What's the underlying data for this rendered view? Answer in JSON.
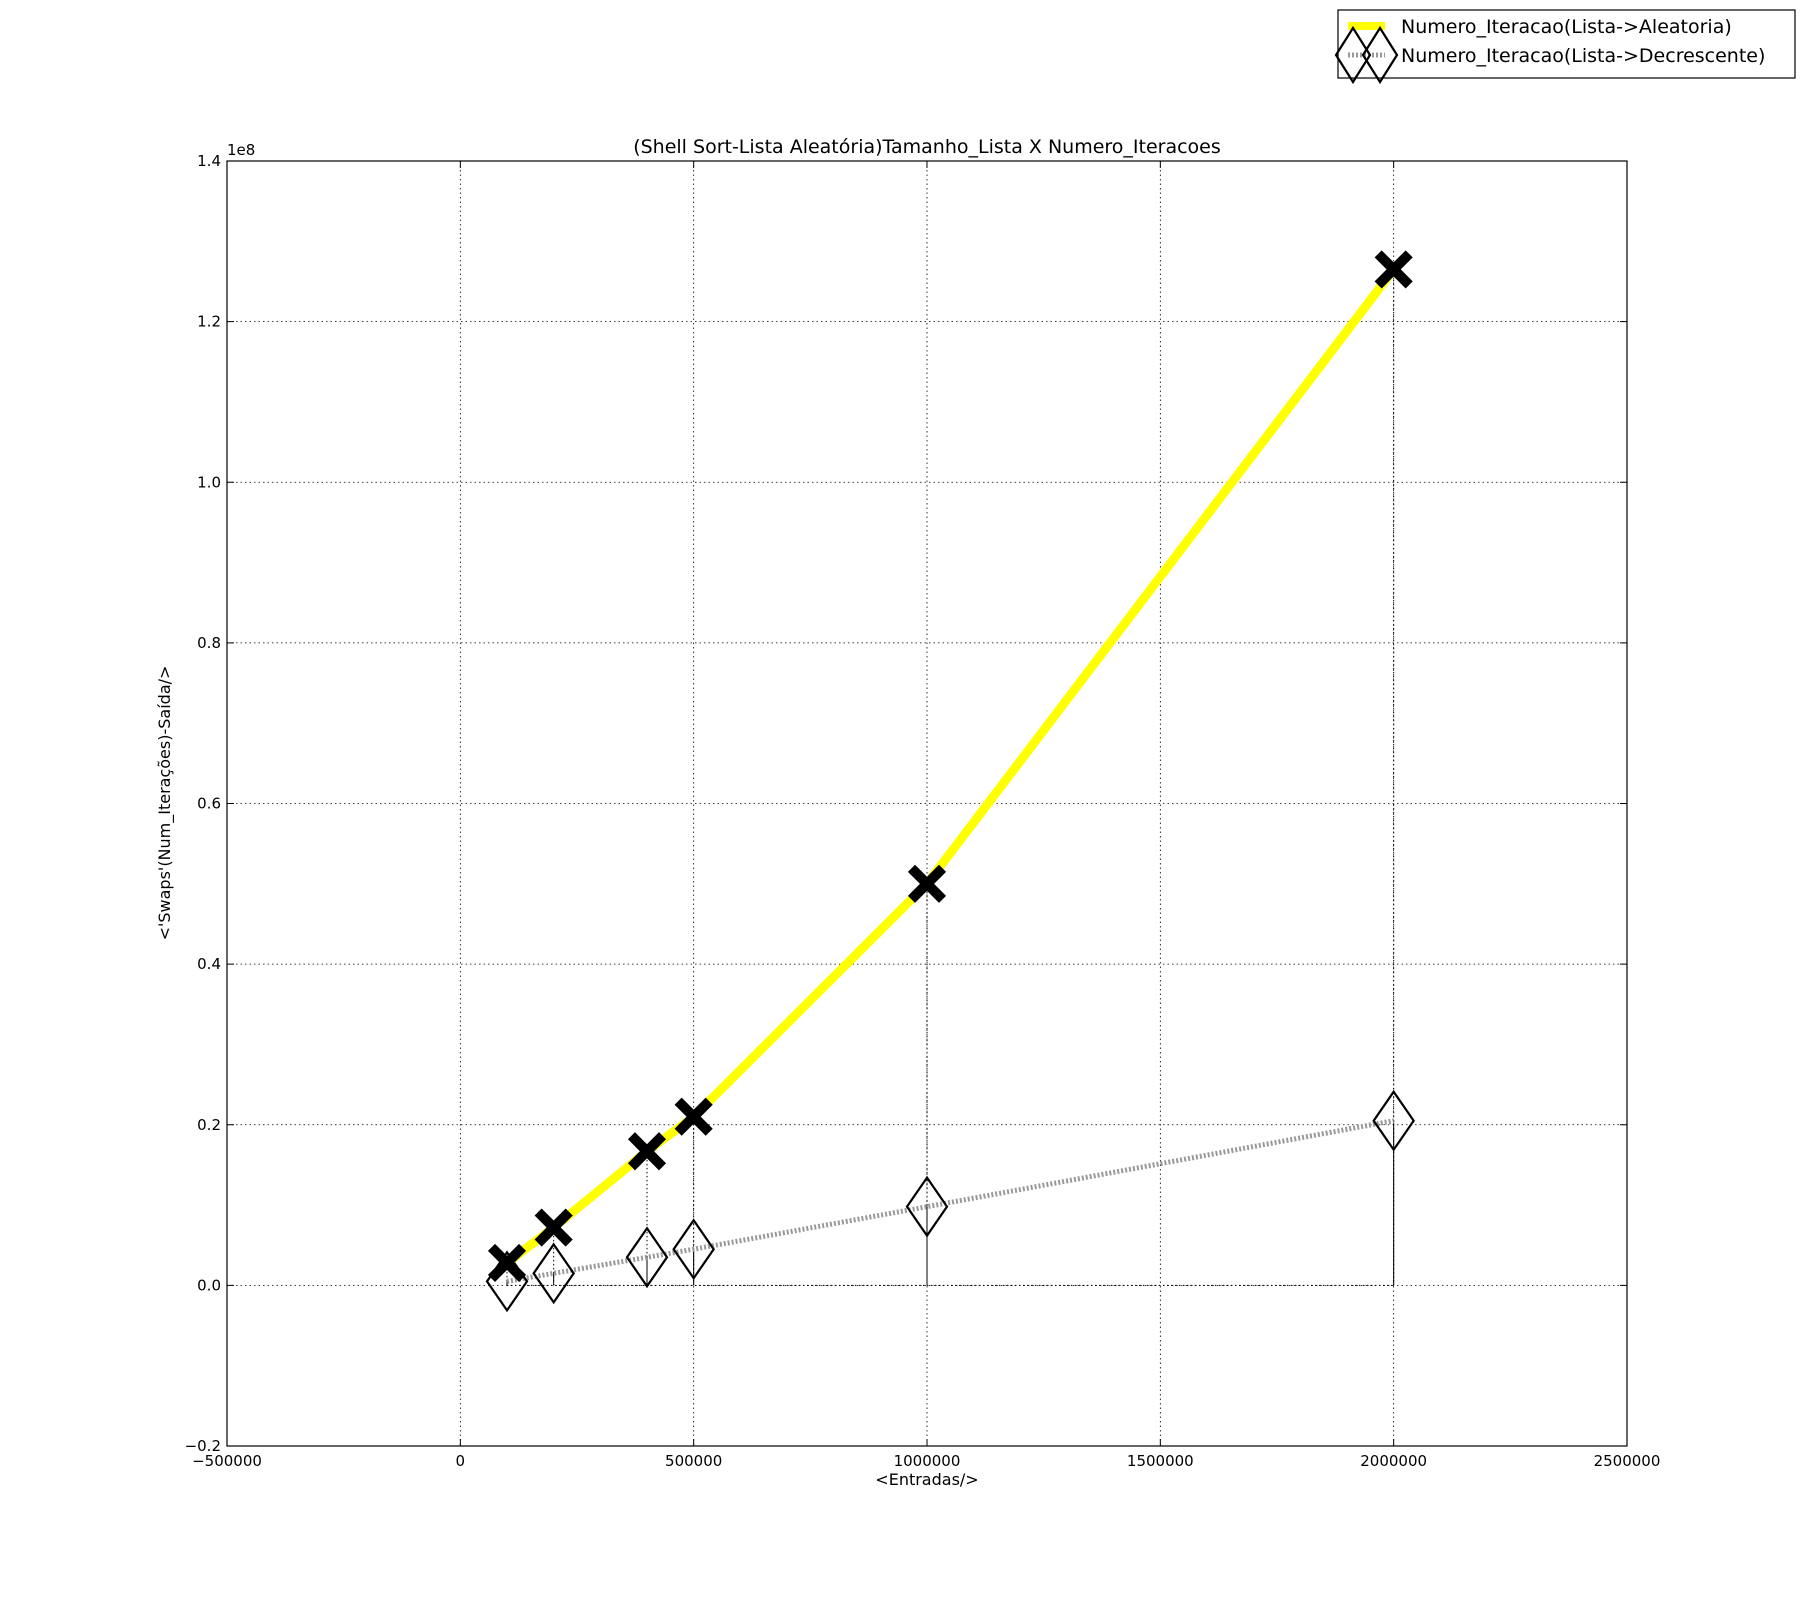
{
  "chart_data": {
    "type": "line",
    "title": "(Shell Sort-Lista Aleatória)Tamanho_Lista X Numero_Iteracoes",
    "xlabel": "<Entradas/>",
    "ylabel": "<'Swaps'(Num_Iterações)-Saída/>",
    "y_offset_label": "1e8",
    "y_scale": 100000000,
    "xlim": [
      -500000,
      2500000
    ],
    "ylim": [
      -0.2,
      1.4
    ],
    "x_ticks": [
      -500000,
      0,
      500000,
      1000000,
      1500000,
      2000000,
      2500000
    ],
    "x_tick_labels": [
      "−500000",
      "0",
      "500000",
      "1000000",
      "1500000",
      "2000000",
      "2500000"
    ],
    "y_ticks": [
      -0.2,
      0.0,
      0.2,
      0.4,
      0.6,
      0.8,
      1.0,
      1.2,
      1.4
    ],
    "y_tick_labels": [
      "−0.2",
      "0.0",
      "0.2",
      "0.4",
      "0.6",
      "0.8",
      "1.0",
      "1.2",
      "1.4"
    ],
    "grid": true,
    "legend_position": "top-right",
    "x": [
      100000,
      200000,
      400000,
      500000,
      1000000,
      2000000
    ],
    "series": [
      {
        "name": "Numero_Iteracao(Lista->Aleatoria)",
        "values": [
          0.028,
          0.072,
          0.167,
          0.21,
          0.5,
          1.265
        ],
        "color": "#ffff00",
        "line_style": "solid",
        "marker": "X"
      },
      {
        "name": "Numero_Iteracao(Lista->Decrescente)",
        "values": [
          0.005,
          0.015,
          0.035,
          0.045,
          0.098,
          0.205
        ],
        "color": "#999999",
        "line_style": "dotted",
        "marker": "diamond"
      }
    ]
  }
}
